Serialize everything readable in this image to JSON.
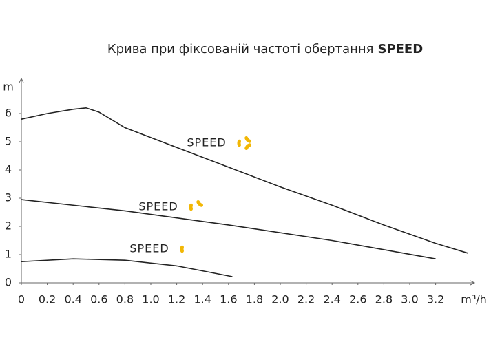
{
  "chart_data": {
    "type": "line",
    "title": "Крива при фіксованій частоті обертання",
    "title_emphasis": "SPEED",
    "y_label": "m",
    "x_label": "m³/h",
    "xlim": [
      0,
      3.5
    ],
    "ylim": [
      0,
      7
    ],
    "xticks": [
      0,
      0.2,
      0.4,
      0.6,
      0.8,
      {
        "value": 1,
        "label": "1.0"
      },
      1.2,
      1.4,
      1.6,
      1.8,
      {
        "value": 2,
        "label": "2.0"
      },
      2.2,
      2.4,
      2.6,
      2.8,
      {
        "value": 3,
        "label": "3.0"
      },
      3.2
    ],
    "yticks": [
      0,
      1,
      2,
      3,
      4,
      5,
      6
    ],
    "series": [
      {
        "name": "SPEED",
        "color": "#222222",
        "x": [
          0,
          0.2,
          0.4,
          0.5,
          0.6,
          0.8,
          1.0,
          1.2,
          1.6,
          2.0,
          2.4,
          2.8,
          3.2,
          3.45
        ],
        "values": [
          5.8,
          6.0,
          6.15,
          6.2,
          6.05,
          5.5,
          5.15,
          4.8,
          4.1,
          3.4,
          2.75,
          2.05,
          1.4,
          1.05
        ]
      },
      {
        "name": "SPEED",
        "color": "#222222",
        "x": [
          0,
          0.8,
          1.6,
          2.4,
          3.2
        ],
        "values": [
          2.95,
          2.55,
          2.05,
          1.5,
          0.85
        ]
      },
      {
        "name": "SPEED",
        "color": "#222222",
        "x": [
          0,
          0.4,
          0.8,
          1.2,
          1.63
        ],
        "values": [
          0.75,
          0.85,
          0.8,
          0.6,
          0.22
        ]
      }
    ]
  }
}
